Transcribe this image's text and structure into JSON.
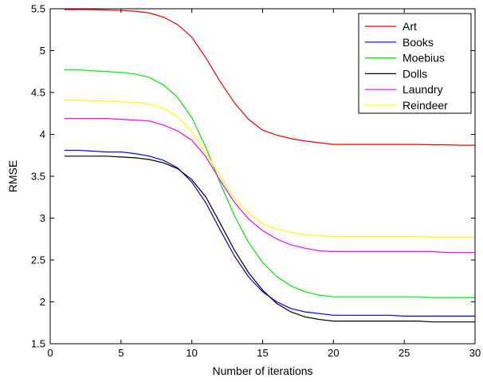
{
  "chart_data": {
    "type": "line",
    "title": "",
    "xlabel": "Number of iterations",
    "ylabel": "RMSE",
    "xlim": [
      0,
      30
    ],
    "ylim": [
      1.5,
      5.5
    ],
    "xticks": [
      0,
      5,
      10,
      15,
      20,
      25,
      30
    ],
    "yticks": [
      1.5,
      2,
      2.5,
      3,
      3.5,
      4,
      4.5,
      5,
      5.5
    ],
    "xtick_labels": [
      "0",
      "5",
      "10",
      "15",
      "20",
      "25",
      "30"
    ],
    "ytick_labels": [
      "1.5",
      "2",
      "2.5",
      "3",
      "3.5",
      "4",
      "4.5",
      "5",
      "5.5"
    ],
    "grid": false,
    "legend_position": "top-right",
    "x": [
      1,
      2,
      3,
      4,
      5,
      6,
      7,
      8,
      9,
      10,
      11,
      12,
      13,
      14,
      15,
      16,
      17,
      18,
      19,
      20,
      21,
      22,
      23,
      24,
      25,
      26,
      27,
      28,
      29,
      30
    ],
    "series": [
      {
        "name": "Art",
        "color": "#ff0000",
        "values": [
          5.49,
          5.49,
          5.49,
          5.485,
          5.48,
          5.47,
          5.45,
          5.4,
          5.31,
          5.16,
          4.91,
          4.63,
          4.38,
          4.18,
          4.05,
          3.99,
          3.95,
          3.92,
          3.9,
          3.88,
          3.88,
          3.88,
          3.88,
          3.88,
          3.88,
          3.88,
          3.875,
          3.875,
          3.87,
          3.87
        ]
      },
      {
        "name": "Books",
        "color": "#0000ff",
        "values": [
          3.81,
          3.81,
          3.8,
          3.79,
          3.79,
          3.77,
          3.74,
          3.69,
          3.6,
          3.43,
          3.18,
          2.86,
          2.55,
          2.3,
          2.12,
          2.0,
          1.92,
          1.88,
          1.86,
          1.84,
          1.84,
          1.84,
          1.84,
          1.84,
          1.83,
          1.83,
          1.83,
          1.83,
          1.83,
          1.83
        ]
      },
      {
        "name": "Moebius",
        "color": "#00ee00",
        "values": [
          4.77,
          4.77,
          4.76,
          4.75,
          4.74,
          4.72,
          4.68,
          4.59,
          4.44,
          4.2,
          3.84,
          3.42,
          3.03,
          2.71,
          2.47,
          2.3,
          2.19,
          2.12,
          2.08,
          2.06,
          2.06,
          2.06,
          2.06,
          2.06,
          2.06,
          2.06,
          2.05,
          2.05,
          2.05,
          2.05
        ]
      },
      {
        "name": "Dolls",
        "color": "#000000",
        "values": [
          3.74,
          3.74,
          3.74,
          3.74,
          3.73,
          3.72,
          3.7,
          3.66,
          3.59,
          3.46,
          3.25,
          2.94,
          2.62,
          2.35,
          2.14,
          1.98,
          1.88,
          1.82,
          1.79,
          1.77,
          1.77,
          1.77,
          1.77,
          1.77,
          1.77,
          1.77,
          1.76,
          1.76,
          1.76,
          1.76
        ]
      },
      {
        "name": "Laundry",
        "color": "#ff00ff",
        "values": [
          4.19,
          4.19,
          4.19,
          4.19,
          4.18,
          4.17,
          4.16,
          4.11,
          4.04,
          3.93,
          3.73,
          3.45,
          3.19,
          2.99,
          2.85,
          2.75,
          2.68,
          2.64,
          2.61,
          2.6,
          2.6,
          2.6,
          2.6,
          2.6,
          2.6,
          2.6,
          2.6,
          2.59,
          2.59,
          2.59
        ]
      },
      {
        "name": "Reindeer",
        "color": "#ffff00",
        "values": [
          4.41,
          4.41,
          4.4,
          4.4,
          4.39,
          4.38,
          4.36,
          4.31,
          4.21,
          4.03,
          3.78,
          3.5,
          3.24,
          3.06,
          2.93,
          2.87,
          2.83,
          2.8,
          2.79,
          2.78,
          2.78,
          2.78,
          2.78,
          2.78,
          2.78,
          2.78,
          2.77,
          2.77,
          2.77,
          2.77
        ]
      }
    ]
  }
}
